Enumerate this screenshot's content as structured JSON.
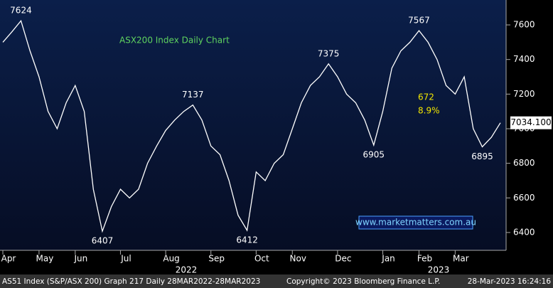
{
  "chart_data": {
    "type": "line",
    "title": "ASX200 Index Daily Chart",
    "categories": [
      "Apr",
      null,
      null,
      null,
      "May",
      null,
      null,
      null,
      "Jun",
      null,
      null,
      null,
      null,
      "Jul",
      null,
      null,
      null,
      null,
      "Aug",
      null,
      null,
      null,
      null,
      "Sep",
      null,
      null,
      null,
      null,
      "Oct",
      null,
      null,
      null,
      "Nov",
      null,
      null,
      null,
      null,
      "Dec",
      null,
      null,
      null,
      null,
      "Jan",
      null,
      null,
      null,
      "Feb",
      null,
      null,
      null,
      "Mar",
      null,
      null,
      null,
      null,
      null
    ],
    "series": [
      {
        "name": "AS51 Index",
        "color": "#ffffff",
        "values": [
          7500,
          7560,
          7624,
          7450,
          7300,
          7100,
          7000,
          7150,
          7250,
          7100,
          6650,
          6407,
          6550,
          6650,
          6600,
          6650,
          6800,
          6900,
          6990,
          7050,
          7100,
          7137,
          7050,
          6900,
          6850,
          6700,
          6500,
          6412,
          6750,
          6700,
          6800,
          6850,
          7000,
          7150,
          7250,
          7300,
          7375,
          7300,
          7200,
          7150,
          7050,
          6905,
          7100,
          7350,
          7450,
          7500,
          7567,
          7500,
          7400,
          7250,
          7200,
          7300,
          7000,
          6895,
          6950,
          7034.1
        ]
      }
    ],
    "ylim": [
      6297,
      7744
    ],
    "yticks": [
      6400,
      6600,
      6800,
      7000,
      7200,
      7400,
      7600
    ],
    "grid": false,
    "year_labels": [
      "2022",
      "2023"
    ],
    "annotations": [
      "7624",
      "6407",
      "7137",
      "6412",
      "7375",
      "6905",
      "7567",
      "6895"
    ],
    "change_labels": [
      "672",
      "8.9%"
    ],
    "last_value_label": "7034.100",
    "watermark": "www.marketmatters.com.au",
    "footer": {
      "left": "AS51 Index (S&P/ASX 200) Graph 217  Daily 28MAR2022-28MAR2023",
      "center": "Copyright© 2023 Bloomberg Finance L.P.",
      "right": "28-Mar-2023 16:24:16"
    }
  }
}
